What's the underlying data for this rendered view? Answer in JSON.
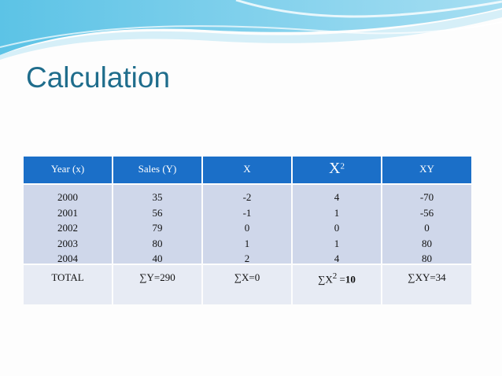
{
  "title": "Calculation",
  "table": {
    "header": [
      "Year (x)",
      "Sales (Y)",
      "X",
      {
        "text": "X",
        "sup": "2"
      },
      "XY"
    ],
    "columns": [
      [
        2000,
        2001,
        2002,
        2003,
        2004
      ],
      [
        35,
        56,
        79,
        80,
        40
      ],
      [
        -2,
        -1,
        0,
        1,
        2
      ],
      [
        4,
        1,
        0,
        1,
        4
      ],
      [
        -70,
        -56,
        0,
        80,
        80
      ]
    ],
    "total": [
      "TOTAL",
      "∑Y=290",
      "∑X=0",
      {
        "text": "∑X",
        "sup": "2",
        "rest": " =",
        "bold": "10"
      },
      "∑XY=34"
    ]
  }
}
